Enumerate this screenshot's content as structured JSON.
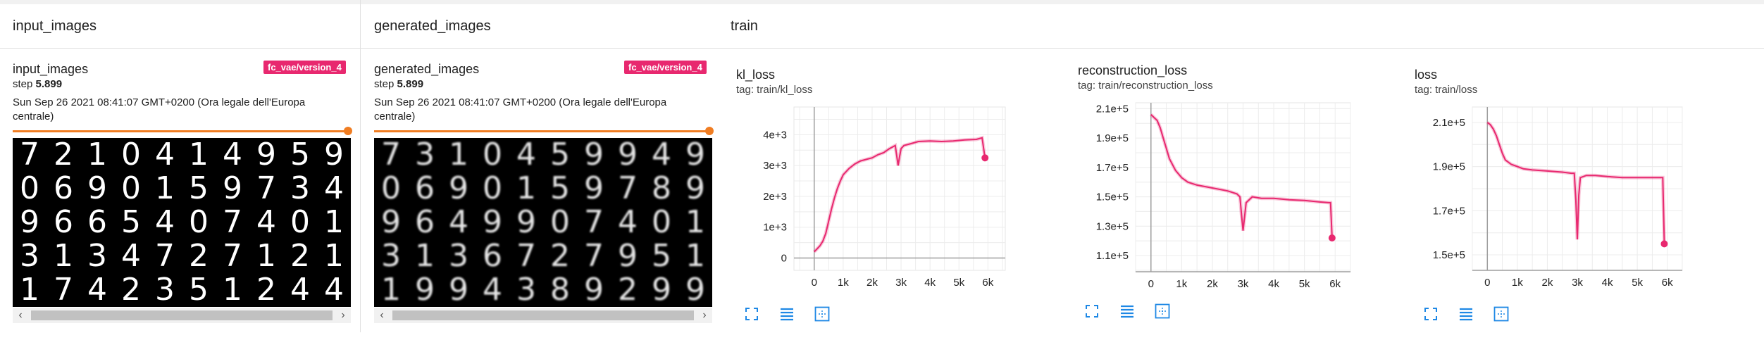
{
  "sections": {
    "input": "input_images",
    "generated": "generated_images",
    "train": "train"
  },
  "image_cards": [
    {
      "title": "input_images",
      "run": "fc_vae/version_4",
      "step_label": "step",
      "step_value": "5.899",
      "date": "Sun Sep 26 2021 08:41:07 GMT+0200 (Ora legale dell'Europa centrale)",
      "digits": [
        "7",
        "2",
        "1",
        "0",
        "4",
        "1",
        "4",
        "9",
        "5",
        "9",
        "0",
        "6",
        "9",
        "0",
        "1",
        "5",
        "9",
        "7",
        "3",
        "4",
        "9",
        "6",
        "6",
        "5",
        "4",
        "0",
        "7",
        "4",
        "0",
        "1",
        "3",
        "1",
        "3",
        "4",
        "7",
        "2",
        "7",
        "1",
        "2",
        "1",
        "1",
        "7",
        "4",
        "2",
        "3",
        "5",
        "1",
        "2",
        "4",
        "4"
      ]
    },
    {
      "title": "generated_images",
      "run": "fc_vae/version_4",
      "step_label": "step",
      "step_value": "5.899",
      "date": "Sun Sep 26 2021 08:41:07 GMT+0200 (Ora legale dell'Europa centrale)",
      "digits": [
        "7",
        "3",
        "1",
        "0",
        "4",
        "5",
        "9",
        "9",
        "4",
        "9",
        "0",
        "6",
        "9",
        "0",
        "1",
        "5",
        "9",
        "7",
        "8",
        "9",
        "9",
        "6",
        "4",
        "9",
        "9",
        "0",
        "7",
        "4",
        "0",
        "1",
        "3",
        "1",
        "3",
        "6",
        "7",
        "2",
        "7",
        "9",
        "5",
        "1",
        "1",
        "9",
        "9",
        "4",
        "3",
        "8",
        "9",
        "2",
        "9",
        "9"
      ]
    }
  ],
  "chart_data": [
    {
      "type": "line",
      "title": "kl_loss",
      "tag": "tag: train/kl_loss",
      "color": "#e8286f",
      "x": [
        0,
        100,
        200,
        300,
        400,
        500,
        600,
        700,
        800,
        900,
        1000,
        1200,
        1400,
        1600,
        1800,
        2000,
        2200,
        2400,
        2600,
        2800,
        2900,
        2950,
        3000,
        3100,
        3300,
        3600,
        4000,
        4400,
        4800,
        5200,
        5600,
        5800,
        5900
      ],
      "series": [
        {
          "values": [
            200,
            300,
            400,
            550,
            800,
            1200,
            1600,
            1950,
            2250,
            2500,
            2700,
            2900,
            3050,
            3150,
            3200,
            3250,
            3350,
            3420,
            3550,
            3650,
            3000,
            3300,
            3550,
            3650,
            3700,
            3780,
            3800,
            3780,
            3800,
            3830,
            3850,
            3900,
            3250
          ]
        }
      ],
      "xticks": [
        "0",
        "1k",
        "2k",
        "3k",
        "4k",
        "5k",
        "6k"
      ],
      "xtick_values": [
        0,
        1000,
        2000,
        3000,
        4000,
        5000,
        6000
      ],
      "yticks": [
        "0",
        "1e+3",
        "2e+3",
        "3e+3",
        "4e+3"
      ],
      "ytick_values": [
        0,
        1000,
        2000,
        3000,
        4000
      ],
      "xlim": [
        -700,
        6600
      ],
      "ylim": [
        -400,
        4900
      ],
      "grid": true
    },
    {
      "type": "line",
      "title": "reconstruction_loss",
      "tag": "tag: train/reconstruction_loss",
      "color": "#e8286f",
      "x": [
        0,
        100,
        200,
        300,
        400,
        500,
        600,
        800,
        1000,
        1200,
        1500,
        2000,
        2500,
        2800,
        2900,
        2950,
        3000,
        3100,
        3300,
        3600,
        4000,
        4500,
        5000,
        5500,
        5800,
        5850,
        5900
      ],
      "series": [
        {
          "values": [
            206000,
            204000,
            202000,
            197000,
            190000,
            183000,
            176000,
            168000,
            163000,
            160000,
            158000,
            156000,
            154000,
            152000,
            150000,
            138000,
            127000,
            146000,
            150000,
            149000,
            149000,
            148000,
            147500,
            146500,
            146000,
            146000,
            122000
          ]
        }
      ],
      "xticks": [
        "0",
        "1k",
        "2k",
        "3k",
        "4k",
        "5k",
        "6k"
      ],
      "xtick_values": [
        0,
        1000,
        2000,
        3000,
        4000,
        5000,
        6000
      ],
      "yticks": [
        "1.1e+5",
        "1.3e+5",
        "1.5e+5",
        "1.7e+5",
        "1.9e+5",
        "2.1e+5"
      ],
      "ytick_values": [
        110000,
        130000,
        150000,
        170000,
        190000,
        210000
      ],
      "xlim": [
        -500,
        6500
      ],
      "ylim": [
        99000,
        214000
      ],
      "grid": true
    },
    {
      "type": "line",
      "title": "loss",
      "tag": "tag: train/loss",
      "color": "#e8286f",
      "x": [
        0,
        100,
        200,
        300,
        400,
        500,
        600,
        800,
        1000,
        1200,
        1500,
        2000,
        2500,
        2800,
        2900,
        2950,
        3000,
        3050,
        3100,
        3300,
        3600,
        4000,
        4500,
        5000,
        5500,
        5800,
        5850,
        5900
      ],
      "series": [
        {
          "values": [
            210000,
            209000,
            207000,
            204000,
            200000,
            196000,
            193000,
            191000,
            190000,
            189000,
            188500,
            188000,
            187500,
            187000,
            187000,
            175000,
            157000,
            177000,
            185000,
            186000,
            186000,
            185500,
            185000,
            185000,
            185000,
            185000,
            185000,
            155000
          ]
        }
      ],
      "xticks": [
        "0",
        "1k",
        "2k",
        "3k",
        "4k",
        "5k",
        "6k"
      ],
      "xtick_values": [
        0,
        1000,
        2000,
        3000,
        4000,
        5000,
        6000
      ],
      "yticks": [
        "1.5e+5",
        "1.7e+5",
        "1.9e+5",
        "2.1e+5"
      ],
      "ytick_values": [
        150000,
        170000,
        190000,
        210000
      ],
      "xlim": [
        -500,
        6500
      ],
      "ylim": [
        143000,
        217000
      ],
      "grid": true
    }
  ],
  "chart_tools": [
    "fullscreen-icon",
    "data-table-icon",
    "fit-domain-icon"
  ],
  "scroll_arrows": {
    "left": "‹",
    "right": "›"
  }
}
